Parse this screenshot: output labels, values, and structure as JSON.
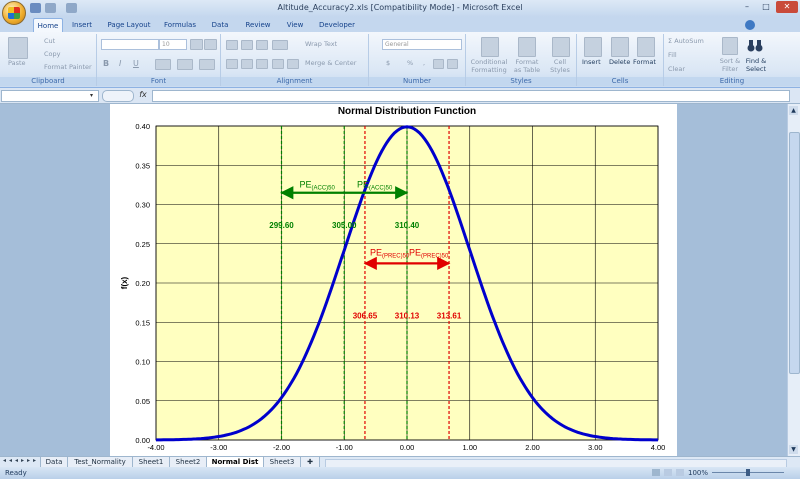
{
  "window": {
    "title": "Altitude_Accuracy2.xls [Compatibility Mode] - Microsoft Excel"
  },
  "tabs": [
    "Home",
    "Insert",
    "Page Layout",
    "Formulas",
    "Data",
    "Review",
    "View",
    "Developer"
  ],
  "ribbon": {
    "clipboard": {
      "paste": "Paste",
      "cut": "Cut",
      "copy": "Copy",
      "format_painter": "Format Painter",
      "label": "Clipboard"
    },
    "font": {
      "size": "10",
      "label": "Font"
    },
    "alignment": {
      "wrap": "Wrap Text",
      "merge": "Merge & Center",
      "label": "Alignment"
    },
    "number": {
      "format": "General",
      "label": "Number"
    },
    "styles": {
      "conditional": "Conditional Formatting",
      "format_table": "Format as Table",
      "cell_styles": "Cell Styles",
      "label": "Styles"
    },
    "cells": {
      "insert": "Insert",
      "delete": "Delete",
      "format": "Format",
      "label": "Cells"
    },
    "editing": {
      "autosum": "AutoSum",
      "fill": "Fill",
      "clear": "Clear",
      "sort": "Sort & Filter",
      "find": "Find & Select",
      "label": "Editing"
    }
  },
  "formula_bar": {
    "fx": "fx",
    "name": "",
    "value": ""
  },
  "chart_data": {
    "type": "line",
    "title": "Normal Distribution Function",
    "ylabel": "f(x)",
    "xlabel": "",
    "xlim": [
      -4,
      4
    ],
    "ylim": [
      0,
      0.4
    ],
    "x_ticks": [
      "-4.00",
      "-3.00",
      "-2.00",
      "-1.00",
      "0.00",
      "1.00",
      "2.00",
      "3.00",
      "4.00"
    ],
    "y_ticks": [
      "0.00",
      "0.05",
      "0.10",
      "0.15",
      "0.20",
      "0.25",
      "0.30",
      "0.35",
      "0.40"
    ],
    "grid": true,
    "series": [
      {
        "function": "standard normal pdf",
        "color": "#0000cc"
      }
    ],
    "green_lines_x": [
      -2.0,
      -1.0,
      0.0
    ],
    "red_lines_x": [
      -0.67,
      0.67
    ],
    "green_labels": [
      {
        "text": "299.60",
        "x": -2.0,
        "y": 0.27
      },
      {
        "text": "305.00",
        "x": -1.0,
        "y": 0.27
      },
      {
        "text": "310.40",
        "x": 0.0,
        "y": 0.27
      }
    ],
    "red_labels": [
      {
        "text": "306.65",
        "x": -0.67,
        "y": 0.155
      },
      {
        "text": "310.13",
        "x": 0.0,
        "y": 0.155
      },
      {
        "text": "313.61",
        "x": 0.67,
        "y": 0.155
      }
    ],
    "acc_arrow": {
      "x": [
        -2.0,
        0.0
      ],
      "y": 0.315,
      "label_left": "PE(ACC)50",
      "label_right": "PE(ACC)50"
    },
    "prec_arrow": {
      "x": [
        -0.67,
        0.67
      ],
      "y": 0.225,
      "label_left": "PE(PREC)50",
      "label_right": "PE(PREC)50"
    },
    "colors": {
      "plot_bg": "#ffffc0",
      "curve": "#0000cc",
      "green": "#008000",
      "red": "#e00000"
    }
  },
  "sheets": [
    "Data",
    "Test_Normality",
    "Sheet1",
    "Sheet2",
    "Normal Dist",
    "Sheet3"
  ],
  "active_sheet": "Normal Dist",
  "status": {
    "text": "Ready",
    "zoom": "100%"
  }
}
